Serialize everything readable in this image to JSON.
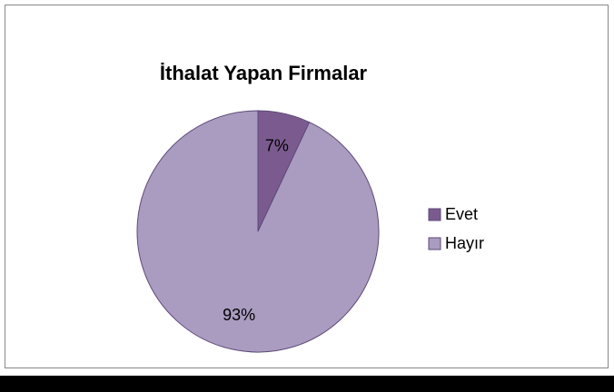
{
  "chart_data": {
    "type": "pie",
    "title": "İthalat Yapan Firmalar",
    "categories": [
      "Evet",
      "Hayır"
    ],
    "values": [
      7,
      93
    ],
    "value_labels": [
      "7%",
      "93%"
    ],
    "colors": [
      "#7b5b8f",
      "#a99cc0"
    ],
    "legend": "right"
  }
}
